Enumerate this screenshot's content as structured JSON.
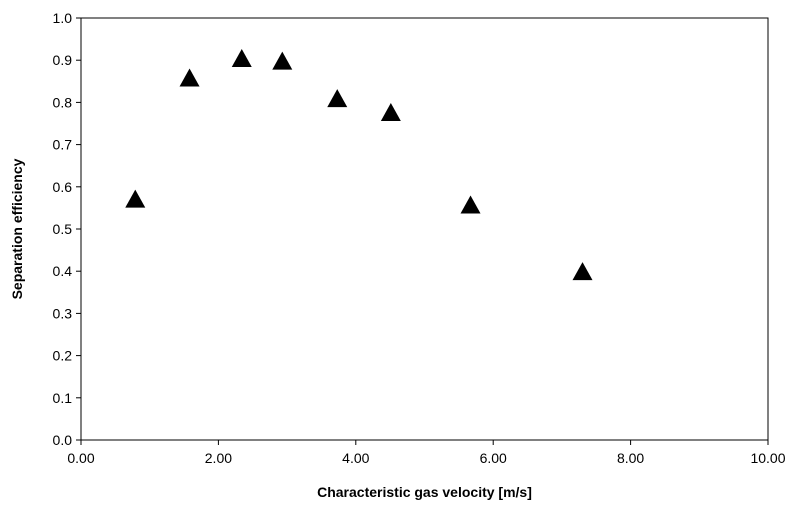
{
  "chart_data": {
    "type": "scatter",
    "title": "",
    "xlabel": "Characteristic gas velocity [m/s]",
    "ylabel": "Separation efficiency",
    "xlim": [
      0,
      10
    ],
    "ylim": [
      0,
      1
    ],
    "x_ticks": [
      "0.00",
      "2.00",
      "4.00",
      "6.00",
      "8.00",
      "10.00"
    ],
    "y_ticks": [
      "0.0",
      "0.1",
      "0.2",
      "0.3",
      "0.4",
      "0.5",
      "0.6",
      "0.7",
      "0.8",
      "0.9",
      "1.0"
    ],
    "grid": false,
    "legend": "none",
    "marker": "triangle",
    "marker_color": "#000000",
    "series": [
      {
        "x": [
          0.79,
          1.58,
          2.34,
          2.93,
          3.73,
          4.51,
          5.67,
          7.3
        ],
        "y": [
          0.567,
          0.854,
          0.9,
          0.894,
          0.805,
          0.772,
          0.553,
          0.395
        ]
      }
    ]
  }
}
